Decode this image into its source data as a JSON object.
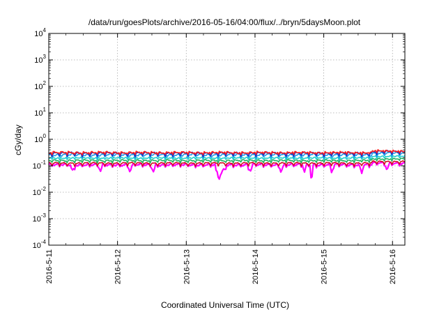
{
  "chart_data": {
    "type": "line",
    "title": "/data/run/goesPlots/archive/2016-05-16/04:00/flux/../bryn/5daysMoon.plot",
    "xlabel": "Coordinated Universal Time (UTC)",
    "ylabel": "cGy/day",
    "y_scale": "log",
    "ylim": [
      0.0001,
      10000
    ],
    "xlim": [
      0,
      5.18
    ],
    "grid": true,
    "legend": "none",
    "x_ticks": [
      {
        "value": 0,
        "label": "2016-5-11"
      },
      {
        "value": 1,
        "label": "2016-5-12"
      },
      {
        "value": 2,
        "label": "2016-5-13"
      },
      {
        "value": 3,
        "label": "2016-5-14"
      },
      {
        "value": 4,
        "label": "2016-5-15"
      },
      {
        "value": 5,
        "label": "2016-5-16"
      }
    ],
    "y_ticks": [
      {
        "value": 0.0001,
        "base": "10",
        "exp": "-4"
      },
      {
        "value": 0.001,
        "base": "10",
        "exp": "-3"
      },
      {
        "value": 0.01,
        "base": "10",
        "exp": "-2"
      },
      {
        "value": 0.1,
        "base": "10",
        "exp": "-1"
      },
      {
        "value": 1,
        "base": "10",
        "exp": "0"
      },
      {
        "value": 10,
        "base": "10",
        "exp": "1"
      },
      {
        "value": 100,
        "base": "10",
        "exp": "2"
      },
      {
        "value": 1000,
        "base": "10",
        "exp": "3"
      },
      {
        "value": 10000,
        "base": "10",
        "exp": "4"
      }
    ],
    "series": [
      {
        "color": "#ff00ff",
        "base": 0.11,
        "var": 0.015,
        "dips": true
      },
      {
        "color": "#d01020",
        "base": 0.125,
        "var": 0.012,
        "dips": false
      },
      {
        "color": "#20b060",
        "base": 0.16,
        "var": 0.015,
        "dips": false
      },
      {
        "color": "#20d0d0",
        "base": 0.2,
        "var": 0.02,
        "dips": false
      },
      {
        "color": "#1c9ce8",
        "base": 0.26,
        "var": 0.04,
        "dips": false
      },
      {
        "color": "#2030c0",
        "base": 0.3,
        "var": 0.04,
        "dips": false
      },
      {
        "color": "#ff2020",
        "base": 0.32,
        "var": 0.04,
        "dips": false
      }
    ]
  }
}
